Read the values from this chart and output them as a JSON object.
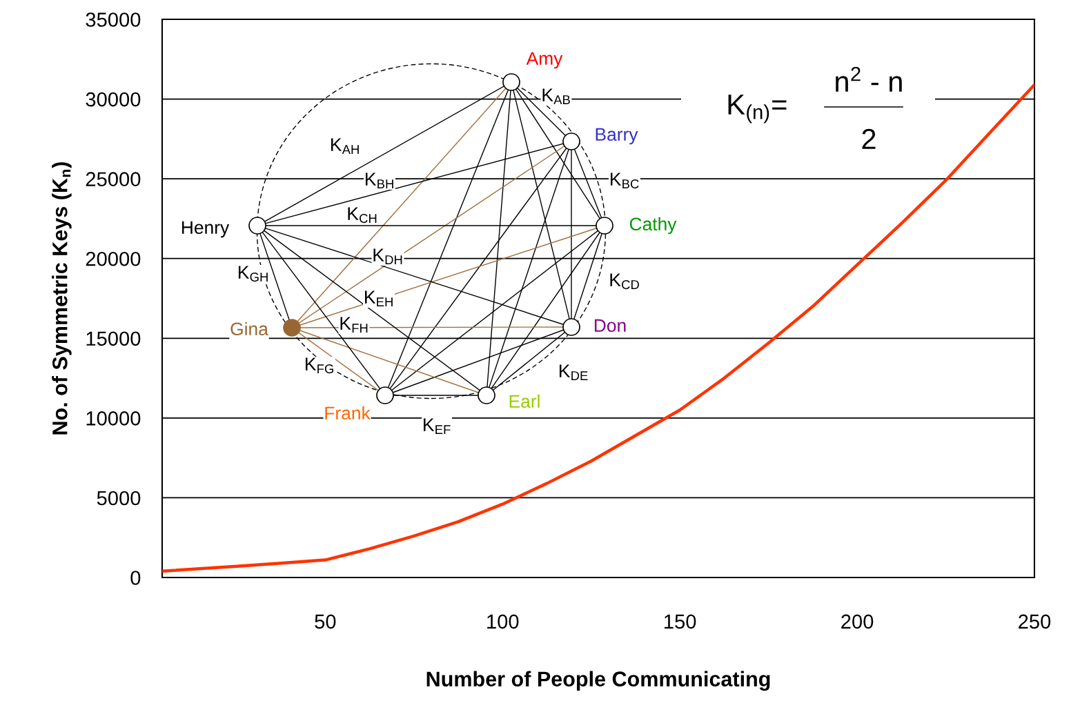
{
  "chart_data": {
    "type": "line",
    "xlabel": "Number of People Communicating",
    "ylabel": "No. of Symmetric Keys (K$_{n}$)",
    "x": [
      4,
      25,
      37.5,
      50,
      62.5,
      75,
      87.5,
      100,
      112.5,
      125,
      137.5,
      150,
      162.5,
      175,
      187.5,
      200,
      212.5,
      225,
      237.5,
      250
    ],
    "series": [
      {
        "color": "#ff3300",
        "values": [
          400,
          700,
          900,
          1100,
          1800,
          2600,
          3500,
          4600,
          5900,
          7300,
          8900,
          10500,
          12500,
          14700,
          17000,
          19600,
          22200,
          24900,
          27900,
          30900
        ]
      }
    ],
    "xlim": [
      4,
      250
    ],
    "xticks": [
      50,
      100,
      150,
      200,
      250
    ],
    "ylim": [
      0,
      35000
    ],
    "yticks": [
      0,
      5000,
      10000,
      15000,
      20000,
      25000,
      30000,
      35000
    ],
    "grid": "y",
    "line_style": "solid",
    "marker": "none",
    "annotations": [
      "Amy",
      "Barry",
      "Cathy",
      "Don",
      "Earl",
      "Frank",
      "Gina",
      "Henry",
      "K$_{AB}$",
      "K$_{AH}$",
      "K$_{BH}$",
      "K$_{BC}$",
      "K$_{CH}$",
      "K$_{DH}$",
      "K$_{CD}$",
      "K$_{EH}$",
      "K$_{FH}$",
      "K$_{GH}$",
      "K$_{FG}$",
      "K$_{DE}$",
      "K$_{EF}$",
      "K$_{(n)}$=",
      "n$^{2}$ - n",
      "2"
    ]
  }
}
